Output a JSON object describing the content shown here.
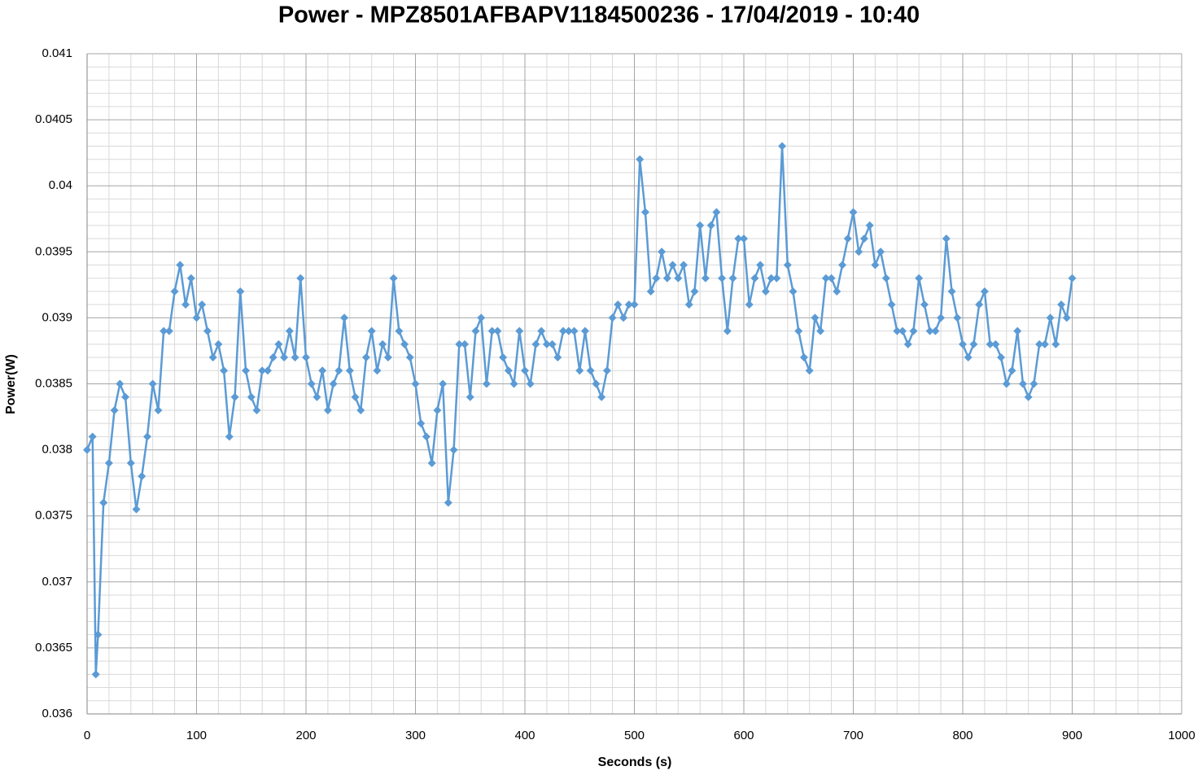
{
  "chart_data": {
    "type": "line",
    "title": "Power - MPZ8501AFBAPV1184500236 - 17/04/2019 - 10:40",
    "x_label": "Seconds (s)",
    "y_label": "Power(W)",
    "color": "#5b9bd5",
    "marker": "diamond",
    "grid": true,
    "minor_grid": true,
    "xlim": [
      0,
      1000
    ],
    "xticks": [
      0,
      100,
      200,
      300,
      400,
      500,
      600,
      700,
      800,
      900,
      1000
    ],
    "ylim": [
      0.036,
      0.041
    ],
    "yticks": [
      0.036,
      0.0365,
      0.037,
      0.0375,
      0.038,
      0.0385,
      0.039,
      0.0395,
      0.04,
      0.0405,
      0.041
    ],
    "x": [
      0,
      5,
      8,
      10,
      15,
      20,
      25,
      30,
      35,
      40,
      45,
      50,
      55,
      60,
      65,
      70,
      75,
      80,
      85,
      90,
      95,
      100,
      105,
      110,
      115,
      120,
      125,
      130,
      135,
      140,
      145,
      150,
      155,
      160,
      165,
      170,
      175,
      180,
      185,
      190,
      195,
      200,
      205,
      210,
      215,
      220,
      225,
      230,
      235,
      240,
      245,
      250,
      255,
      260,
      265,
      270,
      275,
      280,
      285,
      290,
      295,
      300,
      305,
      310,
      315,
      320,
      325,
      330,
      335,
      340,
      345,
      350,
      355,
      360,
      365,
      370,
      375,
      380,
      385,
      390,
      395,
      400,
      405,
      410,
      415,
      420,
      425,
      430,
      435,
      440,
      445,
      450,
      455,
      460,
      465,
      470,
      475,
      480,
      485,
      490,
      495,
      500,
      505,
      510,
      515,
      520,
      525,
      530,
      535,
      540,
      545,
      550,
      555,
      560,
      565,
      570,
      575,
      580,
      585,
      590,
      595,
      600,
      605,
      610,
      615,
      620,
      625,
      630,
      635,
      640,
      645,
      650,
      655,
      660,
      665,
      670,
      675,
      680,
      685,
      690,
      695,
      700,
      705,
      710,
      715,
      720,
      725,
      730,
      735,
      740,
      745,
      750,
      755,
      760,
      765,
      770,
      775,
      780,
      785,
      790,
      795,
      800,
      805,
      810,
      815,
      820,
      825,
      830,
      835,
      840,
      845,
      850,
      855,
      860,
      865,
      870,
      875,
      880,
      885,
      890,
      895,
      900
    ],
    "values": [
      0.038,
      0.0381,
      0.0363,
      0.0366,
      0.0376,
      0.0379,
      0.0383,
      0.0385,
      0.0384,
      0.0379,
      0.03755,
      0.0378,
      0.0381,
      0.0385,
      0.0383,
      0.0389,
      0.0389,
      0.0392,
      0.0394,
      0.0391,
      0.0393,
      0.039,
      0.0391,
      0.0389,
      0.0387,
      0.0388,
      0.0386,
      0.0381,
      0.0384,
      0.0392,
      0.0386,
      0.0384,
      0.0383,
      0.0386,
      0.0386,
      0.0387,
      0.0388,
      0.0387,
      0.0389,
      0.0387,
      0.0393,
      0.0387,
      0.0385,
      0.0384,
      0.0386,
      0.0383,
      0.0385,
      0.0386,
      0.039,
      0.0386,
      0.0384,
      0.0383,
      0.0387,
      0.0389,
      0.0386,
      0.0388,
      0.0387,
      0.0393,
      0.0389,
      0.0388,
      0.0387,
      0.0385,
      0.0382,
      0.0381,
      0.0379,
      0.0383,
      0.0385,
      0.0376,
      0.038,
      0.0388,
      0.0388,
      0.0384,
      0.0389,
      0.039,
      0.0385,
      0.0389,
      0.0389,
      0.0387,
      0.0386,
      0.0385,
      0.0389,
      0.0386,
      0.0385,
      0.0388,
      0.0389,
      0.0388,
      0.0388,
      0.0387,
      0.0389,
      0.0389,
      0.0389,
      0.0386,
      0.0389,
      0.0386,
      0.0385,
      0.0384,
      0.0386,
      0.039,
      0.0391,
      0.039,
      0.0391,
      0.0391,
      0.0402,
      0.0398,
      0.0392,
      0.0393,
      0.0395,
      0.0393,
      0.0394,
      0.0393,
      0.0394,
      0.0391,
      0.0392,
      0.0397,
      0.0393,
      0.0397,
      0.0398,
      0.0393,
      0.0389,
      0.0393,
      0.0396,
      0.0396,
      0.0391,
      0.0393,
      0.0394,
      0.0392,
      0.0393,
      0.0393,
      0.0403,
      0.0394,
      0.0392,
      0.0389,
      0.0387,
      0.0386,
      0.039,
      0.0389,
      0.0393,
      0.0393,
      0.0392,
      0.0394,
      0.0396,
      0.0398,
      0.0395,
      0.0396,
      0.0397,
      0.0394,
      0.0395,
      0.0393,
      0.0391,
      0.0389,
      0.0389,
      0.0388,
      0.0389,
      0.0393,
      0.0391,
      0.0389,
      0.0389,
      0.039,
      0.0396,
      0.0392,
      0.039,
      0.0388,
      0.0387,
      0.0388,
      0.0391,
      0.0392,
      0.0388,
      0.0388,
      0.0387,
      0.0385,
      0.0386,
      0.0389,
      0.0385,
      0.0384,
      0.0385,
      0.0388,
      0.0388,
      0.039,
      0.0388,
      0.0391,
      0.039,
      0.0393
    ]
  }
}
